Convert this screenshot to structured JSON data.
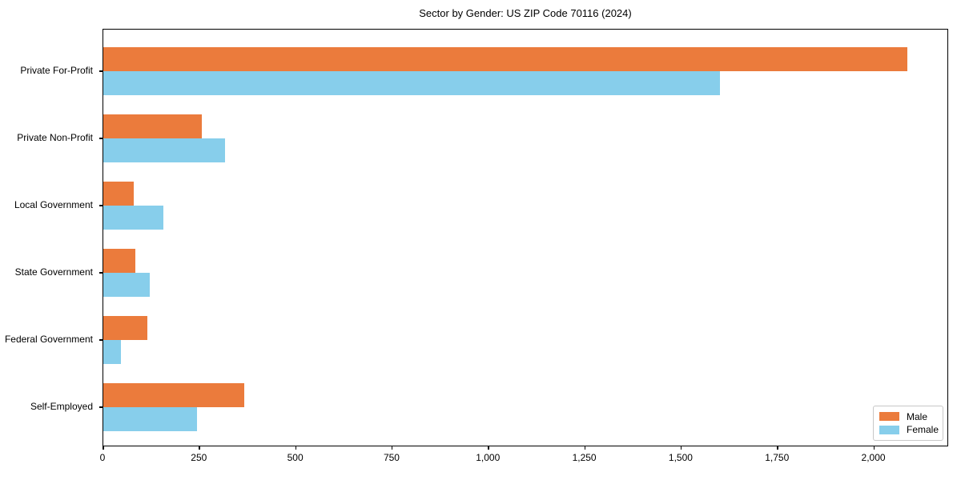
{
  "chart_data": {
    "type": "bar",
    "orientation": "horizontal",
    "title": "Sector by Gender: US ZIP Code 70116 (2024)",
    "xlabel": "",
    "ylabel": "",
    "grid": false,
    "categories": [
      "Private For-Profit",
      "Private Non-Profit",
      "Local Government",
      "State Government",
      "Federal Government",
      "Self-Employed"
    ],
    "series": [
      {
        "name": "Male",
        "color": "#EB7B3C",
        "values": [
          2087,
          255,
          78,
          84,
          114,
          366
        ]
      },
      {
        "name": "Female",
        "color": "#87CEEB",
        "values": [
          1600,
          315,
          156,
          120,
          45,
          243
        ]
      }
    ],
    "xlim": [
      0,
      2190
    ],
    "x_tick_values": [
      0,
      250,
      500,
      750,
      1000,
      1250,
      1500,
      1750,
      2000
    ],
    "x_tick_labels": [
      "0",
      "250",
      "500",
      "750",
      "1,000",
      "1,250",
      "1,500",
      "1,750",
      "2,000"
    ],
    "legend": {
      "position": "lower right",
      "entries": [
        "Male",
        "Female"
      ]
    }
  }
}
